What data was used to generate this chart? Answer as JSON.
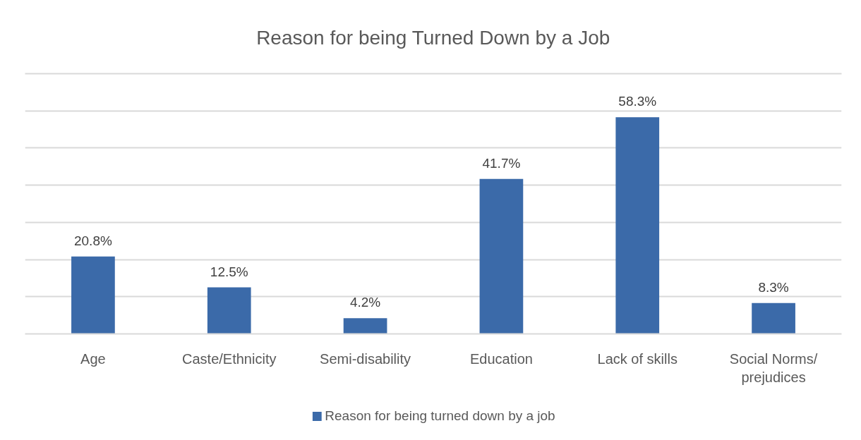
{
  "chart_data": {
    "type": "bar",
    "title": "Reason for being Turned Down by a Job",
    "categories": [
      "Age",
      "Caste/Ethnicity",
      "Semi-disability",
      "Education",
      "Lack of skills",
      "Social Norms/ prejudices"
    ],
    "series": [
      {
        "name": "Reason for being turned down by a job",
        "color": "#3b6aa9",
        "values": [
          20.8,
          12.5,
          4.2,
          41.7,
          58.3,
          8.3
        ],
        "value_labels": [
          "20.8%",
          "12.5%",
          "4.2%",
          "41.7%",
          "58.3%",
          "8.3%"
        ]
      }
    ],
    "ylim": [
      0,
      70
    ],
    "yticks": [
      {
        "value": 0,
        "label": null
      },
      {
        "value": 10,
        "label": null
      },
      {
        "value": 20,
        "label": null
      },
      {
        "value": 30,
        "label": null
      },
      {
        "value": 40,
        "label": null
      },
      {
        "value": 50,
        "label": null
      },
      {
        "value": 60,
        "label": null
      },
      {
        "value": 70,
        "label": null
      }
    ],
    "grid": "y",
    "legend": "bottom",
    "tick_labels": "x"
  }
}
